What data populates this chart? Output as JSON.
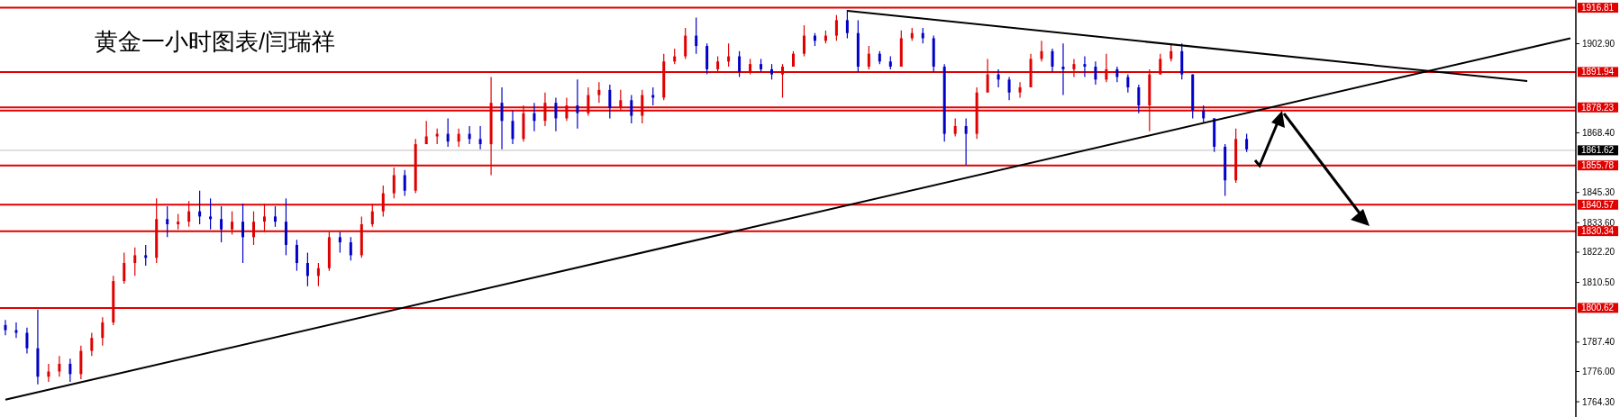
{
  "chart_data": {
    "type": "candlestick",
    "title": "黄金一小时图表/闫瑞祥",
    "categories": [
      null,
      null,
      null,
      null,
      null,
      null,
      null,
      null,
      null,
      null,
      null,
      null,
      null,
      null,
      null,
      null,
      null,
      null,
      null,
      null,
      null,
      null,
      null,
      null,
      null,
      null,
      null,
      null,
      null,
      null,
      null,
      null,
      null,
      null,
      null,
      null,
      null,
      null,
      null,
      null,
      null,
      null,
      null,
      null,
      null,
      null,
      null,
      null,
      null,
      null,
      null,
      null,
      null,
      null,
      null,
      null,
      null,
      null,
      null,
      null,
      null,
      null,
      null,
      null,
      null,
      null,
      null,
      null,
      null,
      null,
      null,
      null,
      null,
      null,
      null,
      null,
      null,
      null,
      null,
      null,
      null,
      null,
      null,
      null,
      null,
      null,
      null,
      null,
      null,
      null,
      null,
      null,
      null,
      null,
      null,
      null,
      null,
      null,
      null,
      null,
      null,
      null,
      null,
      null,
      null,
      null,
      null,
      null,
      null,
      null,
      null,
      null,
      null,
      null,
      null,
      null,
      null,
      null,
      null,
      null,
      null,
      null,
      null,
      null,
      null,
      null,
      null,
      null,
      null,
      null,
      null,
      null,
      null,
      null,
      null,
      null,
      null,
      null,
      null,
      null,
      null,
      null,
      null,
      null,
      null,
      null
    ],
    "colors": [
      "#0000c8",
      "#0000c8",
      "#0000c8",
      "#0000c8",
      "#e00000",
      "#e00000",
      "#0000c8",
      "#e00000",
      "#e00000",
      "#e00000",
      "#e00000",
      "#e00000",
      "#e00000",
      "#0000c8",
      "#e00000",
      "#0000c8",
      "#e00000",
      "#e00000",
      "#0000c8",
      "#0000c8",
      "#0000c8",
      "#e00000",
      "#0000c8",
      "#e00000",
      "#e00000",
      "#0000c8",
      "#0000c8",
      "#0000c8",
      "#0000c8",
      "#e00000",
      "#e00000",
      "#0000c8",
      "#0000c8",
      "#e00000",
      "#e00000",
      "#e00000",
      "#e00000",
      "#0000c8",
      "#e00000",
      "#e00000",
      "#e00000",
      "#0000c8",
      "#e00000",
      "#0000c8",
      "#0000c8",
      "#e00000",
      "#0000c8",
      "#0000c8",
      "#e00000",
      "#0000c8",
      "#e00000",
      "#0000c8",
      "#e00000",
      "#0000c8",
      "#e00000",
      "#e00000",
      "#0000c8",
      "#e00000",
      "#0000c8",
      "#e00000",
      "#0000c8",
      "#e00000",
      "#e00000",
      "#e00000",
      "#0000c8",
      "#0000c8",
      "#e00000",
      "#e00000",
      "#0000c8",
      "#e00000",
      "#0000c8",
      "#0000c8",
      "#e00000",
      "#e00000",
      "#e00000",
      "#0000c8",
      "#e00000",
      "#e00000",
      "#0000c8",
      "#0000c8",
      "#e00000",
      "#0000c8",
      "#0000c8",
      "#e00000",
      "#e00000",
      "#0000c8",
      "#0000c8",
      "#0000c8",
      "#e00000",
      "#0000c8",
      "#e00000",
      "#e00000",
      "#0000c8",
      "#0000c8",
      "#e00000",
      "#e00000",
      "#e00000",
      "#0000c8",
      "#0000c8",
      "#e00000",
      "#0000c8",
      "#0000c8",
      "#e00000",
      "#0000c8",
      "#0000c8",
      "#0000c8",
      "#e00000",
      "#e00000",
      "#e00000",
      "#0000c8",
      "#0000c8",
      "#0000c8",
      "#0000c8",
      "#0000c8",
      "#e00000",
      "#0000c8",
      null,
      null,
      null,
      null,
      null,
      null,
      null,
      null,
      null,
      null,
      null,
      null,
      null,
      null,
      null,
      null,
      null,
      null,
      null,
      null,
      null,
      null,
      null,
      null,
      null,
      null,
      null,
      null,
      null,
      null
    ],
    "ohlc": [
      [
        1794,
        1796,
        1790,
        1792
      ],
      [
        1792,
        1795,
        1789,
        1791
      ],
      [
        1791,
        1793,
        1783,
        1785
      ],
      [
        1785,
        1800,
        1771,
        1774
      ],
      [
        1774,
        1779,
        1772,
        1776
      ],
      [
        1776,
        1782,
        1774,
        1779
      ],
      [
        1779,
        1781,
        1772,
        1775
      ],
      [
        1775,
        1786,
        1773,
        1784
      ],
      [
        1784,
        1791,
        1782,
        1789
      ],
      [
        1789,
        1797,
        1786,
        1795
      ],
      [
        1795,
        1813,
        1794,
        1811
      ],
      [
        1811,
        1822,
        1810,
        1818
      ],
      [
        1818,
        1824,
        1813,
        1821
      ],
      [
        1821,
        1825,
        1817,
        1820
      ],
      [
        1820,
        1843,
        1818,
        1835
      ],
      [
        1835,
        1840,
        1828,
        1833
      ],
      [
        1833,
        1837,
        1831,
        1834
      ],
      [
        1834,
        1842,
        1832,
        1838
      ],
      [
        1838,
        1846,
        1833,
        1836
      ],
      [
        1836,
        1843,
        1831,
        1835
      ],
      [
        1835,
        1840,
        1826,
        1831
      ],
      [
        1831,
        1838,
        1829,
        1834
      ],
      [
        1834,
        1841,
        1818,
        1828
      ],
      [
        1828,
        1838,
        1825,
        1834
      ],
      [
        1834,
        1841,
        1830,
        1836
      ],
      [
        1836,
        1840,
        1832,
        1834
      ],
      [
        1834,
        1843,
        1821,
        1825
      ],
      [
        1825,
        1827,
        1815,
        1818
      ],
      [
        1818,
        1822,
        1809,
        1813
      ],
      [
        1813,
        1818,
        1809,
        1816
      ],
      [
        1816,
        1830,
        1815,
        1828
      ],
      [
        1828,
        1830,
        1822,
        1826
      ],
      [
        1826,
        1828,
        1819,
        1821
      ],
      [
        1821,
        1836,
        1820,
        1833
      ],
      [
        1833,
        1841,
        1832,
        1838
      ],
      [
        1838,
        1848,
        1836,
        1845
      ],
      [
        1845,
        1855,
        1843,
        1852
      ],
      [
        1852,
        1854,
        1844,
        1846
      ],
      [
        1846,
        1866,
        1845,
        1864
      ],
      [
        1864,
        1873,
        1864,
        1867
      ],
      [
        1867,
        1870,
        1864,
        1868
      ],
      [
        1868,
        1874,
        1863,
        1865
      ],
      [
        1865,
        1870,
        1863,
        1868
      ],
      [
        1868,
        1871,
        1864,
        1866
      ],
      [
        1866,
        1871,
        1862,
        1864
      ],
      [
        1864,
        1890,
        1852,
        1880
      ],
      [
        1880,
        1886,
        1862,
        1873
      ],
      [
        1873,
        1877,
        1864,
        1866
      ],
      [
        1866,
        1879,
        1865,
        1876
      ],
      [
        1876,
        1880,
        1869,
        1873
      ],
      [
        1873,
        1884,
        1871,
        1880
      ],
      [
        1880,
        1882,
        1869,
        1874
      ],
      [
        1874,
        1882,
        1873,
        1879
      ],
      [
        1879,
        1889,
        1870,
        1876
      ],
      [
        1876,
        1886,
        1875,
        1883
      ],
      [
        1883,
        1888,
        1880,
        1885
      ],
      [
        1885,
        1887,
        1874,
        1878
      ],
      [
        1878,
        1885,
        1877,
        1881
      ],
      [
        1881,
        1883,
        1872,
        1875
      ],
      [
        1875,
        1885,
        1872,
        1883
      ],
      [
        1883,
        1886,
        1879,
        1882
      ],
      [
        1882,
        1899,
        1881,
        1896
      ],
      [
        1896,
        1901,
        1895,
        1898
      ],
      [
        1898,
        1909,
        1897,
        1906
      ],
      [
        1906,
        1913,
        1899,
        1902
      ],
      [
        1902,
        1903,
        1891,
        1893
      ],
      [
        1893,
        1898,
        1892,
        1896
      ],
      [
        1896,
        1903,
        1894,
        1898
      ],
      [
        1898,
        1900,
        1890,
        1892
      ],
      [
        1892,
        1897,
        1891,
        1895
      ],
      [
        1895,
        1897,
        1892,
        1893
      ],
      [
        1893,
        1895,
        1889,
        1891
      ],
      [
        1891,
        1895,
        1882,
        1894
      ],
      [
        1894,
        1900,
        1894,
        1899
      ],
      [
        1899,
        1910,
        1898,
        1906
      ],
      [
        1906,
        1907,
        1902,
        1904
      ],
      [
        1904,
        1908,
        1903,
        1906
      ],
      [
        1906,
        1914,
        1904,
        1912
      ],
      [
        1912,
        1916,
        1905,
        1907
      ],
      [
        1907,
        1912,
        1892,
        1894
      ],
      [
        1894,
        1902,
        1893,
        1899
      ],
      [
        1899,
        1900,
        1895,
        1896
      ],
      [
        1896,
        1898,
        1893,
        1894
      ],
      [
        1894,
        1908,
        1894,
        1905
      ],
      [
        1905,
        1909,
        1904,
        1907
      ],
      [
        1907,
        1909,
        1903,
        1905
      ],
      [
        1905,
        1906,
        1892,
        1894
      ],
      [
        1894,
        1895,
        1865,
        1868
      ],
      [
        1868,
        1874,
        1867,
        1871
      ],
      [
        1871,
        1874,
        1856,
        1868
      ],
      [
        1868,
        1886,
        1866,
        1884
      ],
      [
        1884,
        1897,
        1884,
        1891
      ],
      [
        1891,
        1893,
        1886,
        1889
      ],
      [
        1889,
        1890,
        1881,
        1884
      ],
      [
        1884,
        1888,
        1882,
        1886
      ],
      [
        1886,
        1899,
        1886,
        1897
      ],
      [
        1897,
        1904,
        1896,
        1900
      ],
      [
        1900,
        1901,
        1892,
        1894
      ],
      [
        1894,
        1903,
        1883,
        1893
      ],
      [
        1893,
        1897,
        1890,
        1895
      ],
      [
        1895,
        1898,
        1890,
        1894
      ],
      [
        1894,
        1896,
        1887,
        1889
      ],
      [
        1889,
        1899,
        1888,
        1893
      ],
      [
        1893,
        1894,
        1888,
        1890
      ],
      [
        1890,
        1891,
        1884,
        1886
      ],
      [
        1886,
        1887,
        1876,
        1879
      ],
      [
        1879,
        1893,
        1869,
        1891
      ],
      [
        1891,
        1899,
        1891,
        1897
      ],
      [
        1897,
        1903,
        1896,
        1900
      ],
      [
        1900,
        1903,
        1889,
        1891
      ],
      [
        1891,
        1891,
        1874,
        1877
      ],
      [
        1877,
        1879,
        1872,
        1874
      ],
      [
        1874,
        1874,
        1861,
        1863
      ],
      [
        1863,
        1864,
        1844,
        1850
      ],
      [
        1850,
        1870,
        1849,
        1866
      ],
      [
        1866,
        1868,
        1861,
        1862
      ],
      null,
      null,
      null,
      null,
      null,
      null,
      null,
      null,
      null,
      null,
      null,
      null,
      null,
      null,
      null,
      null,
      null,
      null,
      null,
      null,
      null,
      null,
      null,
      null,
      null,
      null,
      null,
      null,
      null,
      null
    ],
    "series": [
      {
        "type": "line",
        "color": "#000000",
        "values": [
          1765.1,
          null,
          null,
          null,
          null,
          null,
          null,
          null,
          null,
          null,
          null,
          null,
          null,
          null,
          null,
          null,
          null,
          null,
          null,
          null,
          null,
          null,
          null,
          null,
          null,
          null,
          null,
          null,
          null,
          null,
          null,
          null,
          null,
          null,
          null,
          null,
          null,
          null,
          null,
          null,
          null,
          null,
          null,
          null,
          null,
          null,
          null,
          null,
          null,
          null,
          null,
          null,
          null,
          null,
          null,
          null,
          null,
          null,
          null,
          null,
          null,
          null,
          null,
          null,
          null,
          null,
          null,
          null,
          null,
          null,
          null,
          null,
          null,
          null,
          null,
          null,
          null,
          null,
          null,
          null,
          null,
          null,
          null,
          null,
          null,
          null,
          null,
          null,
          null,
          null,
          null,
          null,
          null,
          null,
          null,
          null,
          null,
          null,
          null,
          null,
          null,
          null,
          null,
          null,
          null,
          null,
          null,
          null,
          null,
          null,
          null,
          null,
          null,
          null,
          null,
          null,
          null,
          null,
          null,
          null,
          null,
          null,
          null,
          null,
          null,
          null,
          null,
          null,
          null,
          null,
          null,
          null,
          null,
          null,
          null,
          null,
          null,
          null,
          null,
          null,
          null,
          null,
          null,
          null,
          null,
          1905.0
        ]
      },
      {
        "type": "line",
        "color": "#000000",
        "values": [
          null,
          null,
          null,
          null,
          null,
          null,
          null,
          null,
          null,
          null,
          null,
          null,
          null,
          null,
          null,
          null,
          null,
          null,
          null,
          null,
          null,
          null,
          null,
          null,
          null,
          null,
          null,
          null,
          null,
          null,
          null,
          null,
          null,
          null,
          null,
          null,
          null,
          null,
          null,
          null,
          null,
          null,
          null,
          null,
          null,
          null,
          null,
          null,
          null,
          null,
          null,
          null,
          null,
          null,
          null,
          null,
          null,
          null,
          null,
          null,
          null,
          null,
          null,
          null,
          null,
          null,
          null,
          null,
          null,
          null,
          null,
          null,
          null,
          null,
          null,
          null,
          null,
          null,
          1915.6,
          null,
          null,
          null,
          null,
          null,
          null,
          null,
          null,
          null,
          null,
          null,
          null,
          null,
          null,
          null,
          null,
          null,
          null,
          null,
          null,
          null,
          null,
          null,
          null,
          null,
          null,
          null,
          null,
          null,
          null,
          null,
          null,
          null,
          null,
          null,
          null,
          null,
          null,
          null,
          null,
          null,
          null,
          null,
          null,
          null,
          null,
          null,
          null,
          null,
          null,
          null,
          null,
          null,
          null,
          null,
          null,
          null,
          null,
          null,
          null,
          null,
          null,
          1888.4,
          null,
          null,
          null,
          null
        ]
      }
    ],
    "ylim": [
      1758.4,
      1919.8
    ],
    "yticks": [
      {
        "value": 1902.9,
        "label": "1902.90"
      },
      {
        "value": 1868.4,
        "label": "1868.40"
      },
      {
        "value": 1845.3,
        "label": "1845.30"
      },
      {
        "value": 1833.6,
        "label": "1833.60"
      },
      {
        "value": 1822.2,
        "label": "1822.20"
      },
      {
        "value": 1810.5,
        "label": "1810.50"
      },
      {
        "value": 1787.4,
        "label": "1787.40"
      },
      {
        "value": 1776.0,
        "label": "1776.00"
      },
      {
        "value": 1764.3,
        "label": "1764.30"
      }
    ],
    "tick_labels": "y",
    "ref_lines": [
      {
        "axis": "y",
        "value": 1916.81,
        "label": "1916.81",
        "color": "#e00000"
      },
      {
        "axis": "y",
        "value": 1891.94,
        "label": "1891.94",
        "color": "#e00000"
      },
      {
        "axis": "y",
        "value": 1878.23,
        "label": "1878.23",
        "color": "#e00000"
      },
      {
        "axis": "y",
        "value": 1877.0,
        "label": null,
        "color": "#e00000"
      },
      {
        "axis": "y",
        "value": 1861.62,
        "label": "1861.62",
        "color": "#c0c0c0"
      },
      {
        "axis": "y",
        "value": 1855.78,
        "label": "1855.78",
        "color": "#e00000"
      },
      {
        "axis": "y",
        "value": 1840.57,
        "label": "1840.57",
        "color": "#e00000"
      },
      {
        "axis": "y",
        "value": 1830.34,
        "label": "1830.34",
        "color": "#e00000"
      },
      {
        "axis": "y",
        "value": 1800.62,
        "label": "1800.62",
        "color": "#e00000"
      }
    ]
  }
}
